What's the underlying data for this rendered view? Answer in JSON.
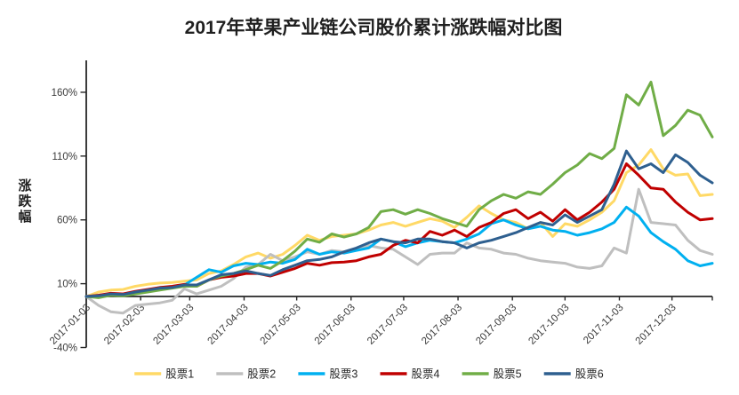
{
  "title": "2017年苹果产业链公司股价累计涨跌幅对比图",
  "chart_data": {
    "type": "line",
    "title": "2017年苹果产业链公司股价累计涨跌幅对比图",
    "xlabel": "",
    "ylabel": "涨跌幅",
    "ylim": [
      -40,
      185
    ],
    "y_ticks": [
      160,
      110,
      60,
      10,
      -40
    ],
    "y_tick_suffix": "%",
    "grid": false,
    "legend_position": "bottom",
    "axis_cross_y": 0,
    "x_step_days": 7,
    "x_end_day": 357,
    "x_tick_days": [
      0,
      31,
      59,
      90,
      120,
      151,
      181,
      212,
      243,
      273,
      304,
      334
    ],
    "x_tick_labels": [
      "2017-01-03",
      "2017-02-03",
      "2017-03-03",
      "2017-04-03",
      "2017-05-03",
      "2017-06-03",
      "2017-07-03",
      "2017-08-03",
      "2017-09-03",
      "2017-10-03",
      "2017-11-03",
      "2017-12-03"
    ],
    "series": [
      {
        "name": "股票1",
        "color": "#FFD966",
        "values": [
          0,
          3.5,
          5,
          5.5,
          8,
          9.5,
          10.5,
          11,
          12,
          13,
          18,
          20,
          25,
          31,
          34,
          30,
          33,
          40,
          48,
          44,
          47,
          48,
          49,
          52,
          56,
          58,
          55,
          58,
          61,
          59,
          54,
          62,
          71,
          65,
          60,
          58,
          53,
          58,
          47,
          57,
          55,
          60,
          66,
          75,
          97,
          103,
          115,
          100,
          95,
          96,
          79,
          80
        ]
      },
      {
        "name": "股票2",
        "color": "#BFBFBF",
        "values": [
          0,
          -7,
          -12,
          -13,
          -7,
          -6,
          -5,
          -3,
          6,
          2,
          5,
          8,
          14,
          23,
          25,
          33,
          28,
          31,
          35,
          33,
          36,
          35,
          37,
          40,
          38,
          37,
          31,
          25,
          33,
          34,
          34,
          42,
          38,
          37,
          34,
          33,
          30,
          28,
          27,
          26,
          23,
          22,
          24,
          38,
          34,
          84,
          58,
          57,
          56,
          44,
          36,
          33
        ]
      },
      {
        "name": "股票3",
        "color": "#00B0F0",
        "values": [
          0,
          1,
          2,
          1.5,
          3,
          5,
          7,
          7.5,
          9,
          15,
          21,
          19,
          24,
          26,
          25,
          27,
          26,
          29,
          37,
          33,
          35,
          34,
          36,
          38,
          45,
          43,
          39,
          42,
          44,
          43,
          42,
          45,
          49,
          57,
          60,
          56,
          53,
          55,
          52,
          51,
          48,
          50,
          53,
          58,
          70,
          63,
          50,
          43,
          37,
          28,
          24,
          26
        ]
      },
      {
        "name": "股票4",
        "color": "#C00000",
        "values": [
          0,
          1,
          2.5,
          2,
          4,
          5.5,
          7,
          8,
          9.5,
          8,
          13,
          15,
          16,
          18,
          18,
          16,
          19,
          22,
          26,
          24.5,
          26.5,
          27,
          28,
          31,
          33,
          40,
          44,
          42,
          51,
          48,
          52,
          47,
          54,
          58,
          65,
          68,
          61,
          66,
          59,
          68,
          60,
          66,
          74,
          84,
          104,
          95,
          85,
          84,
          74,
          66,
          60,
          61
        ]
      },
      {
        "name": "股票5",
        "color": "#70AD47",
        "values": [
          0,
          -1,
          1,
          0.5,
          2,
          3.5,
          5,
          6.5,
          8,
          8,
          13,
          16,
          18,
          21,
          24.5,
          22,
          28,
          35.5,
          45,
          42.5,
          49,
          46.5,
          49,
          54,
          66.5,
          68,
          64.5,
          68,
          65,
          61,
          58,
          55,
          68,
          75,
          80,
          77,
          82,
          80,
          88,
          97,
          103,
          112,
          108,
          116,
          158,
          150,
          168,
          126,
          134,
          146,
          142,
          125
        ]
      },
      {
        "name": "股票6",
        "color": "#2E5F8F",
        "values": [
          0,
          0.5,
          2,
          1.5,
          3.5,
          5,
          6.5,
          7,
          9,
          9,
          13,
          17,
          18,
          20,
          18,
          16.5,
          21,
          24.5,
          28,
          29,
          31,
          35,
          38,
          42,
          45,
          43,
          42,
          45,
          45,
          43,
          42,
          38,
          42,
          44,
          47,
          50,
          54,
          58,
          56,
          64,
          58,
          63,
          68,
          88,
          114,
          100,
          104,
          97,
          111,
          105,
          95,
          89
        ]
      }
    ]
  }
}
